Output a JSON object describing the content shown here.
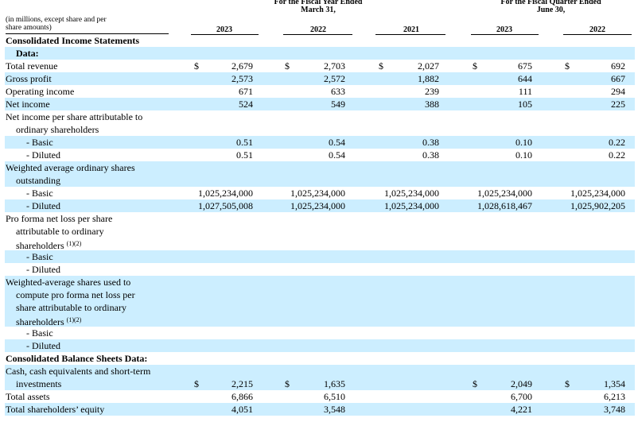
{
  "header": {
    "fiscal_year_title_line1": "For the Fiscal Year Ended",
    "fiscal_year_title_line2": "March 31,",
    "fiscal_quarter_title_line1": "For the Fiscal Quarter Ended",
    "fiscal_quarter_title_line2": "June 30,",
    "unit_note_line1": "(in millions, except share and per",
    "unit_note_line2": "share amounts)",
    "columns": [
      "2023",
      "2022",
      "2021",
      "2023",
      "2022"
    ]
  },
  "rows": [
    {
      "label": "Consolidated Income Statements",
      "bold": true,
      "indent": 0,
      "shade": false,
      "values": [
        "",
        "",
        "",
        "",
        ""
      ],
      "dollars": [
        false,
        false,
        false,
        false,
        false
      ]
    },
    {
      "label": "Data:",
      "bold": true,
      "indent": 1,
      "shade": true,
      "values": [
        "",
        "",
        "",
        "",
        ""
      ],
      "dollars": [
        false,
        false,
        false,
        false,
        false
      ]
    },
    {
      "label": "Total revenue",
      "bold": false,
      "indent": 0,
      "shade": false,
      "values": [
        "2,679",
        "2,703",
        "2,027",
        "675",
        "692"
      ],
      "dollars": [
        true,
        true,
        true,
        true,
        true
      ]
    },
    {
      "label": "Gross profit",
      "bold": false,
      "indent": 0,
      "shade": true,
      "values": [
        "2,573",
        "2,572",
        "1,882",
        "644",
        "667"
      ],
      "dollars": [
        false,
        false,
        false,
        false,
        false
      ]
    },
    {
      "label": "Operating income",
      "bold": false,
      "indent": 0,
      "shade": false,
      "values": [
        "671",
        "633",
        "239",
        "111",
        "294"
      ],
      "dollars": [
        false,
        false,
        false,
        false,
        false
      ]
    },
    {
      "label": "Net income",
      "bold": false,
      "indent": 0,
      "shade": true,
      "values": [
        "524",
        "549",
        "388",
        "105",
        "225"
      ],
      "dollars": [
        false,
        false,
        false,
        false,
        false
      ]
    },
    {
      "label": "Net income per share attributable to",
      "bold": false,
      "indent": 0,
      "shade": false,
      "values": [
        "",
        "",
        "",
        "",
        ""
      ],
      "dollars": [
        false,
        false,
        false,
        false,
        false
      ]
    },
    {
      "label": "ordinary shareholders",
      "bold": false,
      "indent": 1,
      "shade": false,
      "values": [
        "",
        "",
        "",
        "",
        ""
      ],
      "dollars": [
        false,
        false,
        false,
        false,
        false
      ]
    },
    {
      "label": "- Basic",
      "bold": false,
      "indent": 2,
      "shade": true,
      "values": [
        "0.51",
        "0.54",
        "0.38",
        "0.10",
        "0.22"
      ],
      "dollars": [
        false,
        false,
        false,
        false,
        false
      ]
    },
    {
      "label": "- Diluted",
      "bold": false,
      "indent": 2,
      "shade": false,
      "values": [
        "0.51",
        "0.54",
        "0.38",
        "0.10",
        "0.22"
      ],
      "dollars": [
        false,
        false,
        false,
        false,
        false
      ]
    },
    {
      "label": "Weighted average ordinary shares",
      "bold": false,
      "indent": 0,
      "shade": true,
      "values": [
        "",
        "",
        "",
        "",
        ""
      ],
      "dollars": [
        false,
        false,
        false,
        false,
        false
      ]
    },
    {
      "label": "outstanding",
      "bold": false,
      "indent": 1,
      "shade": true,
      "values": [
        "",
        "",
        "",
        "",
        ""
      ],
      "dollars": [
        false,
        false,
        false,
        false,
        false
      ]
    },
    {
      "label": "- Basic",
      "bold": false,
      "indent": 2,
      "shade": false,
      "values": [
        "1,025,234,000",
        "1,025,234,000",
        "1,025,234,000",
        "1,025,234,000",
        "1,025,234,000"
      ],
      "dollars": [
        false,
        false,
        false,
        false,
        false
      ]
    },
    {
      "label": "- Diluted",
      "bold": false,
      "indent": 2,
      "shade": true,
      "values": [
        "1,027,505,008",
        "1,025,234,000",
        "1,025,234,000",
        "1,028,618,467",
        "1,025,902,205"
      ],
      "dollars": [
        false,
        false,
        false,
        false,
        false
      ]
    },
    {
      "label": "Pro forma net loss per share",
      "bold": false,
      "indent": 0,
      "shade": false,
      "values": [
        "",
        "",
        "",
        "",
        ""
      ],
      "dollars": [
        false,
        false,
        false,
        false,
        false
      ]
    },
    {
      "label": "attributable to ordinary",
      "bold": false,
      "indent": 1,
      "shade": false,
      "values": [
        "",
        "",
        "",
        "",
        ""
      ],
      "dollars": [
        false,
        false,
        false,
        false,
        false
      ]
    },
    {
      "label": "shareholders",
      "footnote": "(1)(2)",
      "bold": false,
      "indent": 1,
      "shade": false,
      "values": [
        "",
        "",
        "",
        "",
        ""
      ],
      "dollars": [
        false,
        false,
        false,
        false,
        false
      ]
    },
    {
      "label": "- Basic",
      "bold": false,
      "indent": 2,
      "shade": true,
      "values": [
        "",
        "",
        "",
        "",
        ""
      ],
      "dollars": [
        false,
        false,
        false,
        false,
        false
      ]
    },
    {
      "label": "- Diluted",
      "bold": false,
      "indent": 2,
      "shade": false,
      "values": [
        "",
        "",
        "",
        "",
        ""
      ],
      "dollars": [
        false,
        false,
        false,
        false,
        false
      ]
    },
    {
      "label": "Weighted-average shares used to",
      "bold": false,
      "indent": 0,
      "shade": true,
      "values": [
        "",
        "",
        "",
        "",
        ""
      ],
      "dollars": [
        false,
        false,
        false,
        false,
        false
      ]
    },
    {
      "label": "compute pro forma net loss per",
      "bold": false,
      "indent": 1,
      "shade": true,
      "values": [
        "",
        "",
        "",
        "",
        ""
      ],
      "dollars": [
        false,
        false,
        false,
        false,
        false
      ]
    },
    {
      "label": "share attributable to ordinary",
      "bold": false,
      "indent": 1,
      "shade": true,
      "values": [
        "",
        "",
        "",
        "",
        ""
      ],
      "dollars": [
        false,
        false,
        false,
        false,
        false
      ]
    },
    {
      "label": "shareholders",
      "footnote": "(1)(2)",
      "bold": false,
      "indent": 1,
      "shade": true,
      "values": [
        "",
        "",
        "",
        "",
        ""
      ],
      "dollars": [
        false,
        false,
        false,
        false,
        false
      ]
    },
    {
      "label": "- Basic",
      "bold": false,
      "indent": 2,
      "shade": false,
      "values": [
        "",
        "",
        "",
        "",
        ""
      ],
      "dollars": [
        false,
        false,
        false,
        false,
        false
      ]
    },
    {
      "label": "- Diluted",
      "bold": false,
      "indent": 2,
      "shade": true,
      "values": [
        "",
        "",
        "",
        "",
        ""
      ],
      "dollars": [
        false,
        false,
        false,
        false,
        false
      ]
    },
    {
      "label": "Consolidated Balance Sheets Data:",
      "bold": true,
      "indent": 0,
      "shade": false,
      "values": [
        "",
        "",
        "",
        "",
        ""
      ],
      "dollars": [
        false,
        false,
        false,
        false,
        false
      ]
    },
    {
      "label": "Cash, cash equivalents and short-term",
      "bold": false,
      "indent": 0,
      "shade": true,
      "values": [
        "",
        "",
        "",
        "",
        ""
      ],
      "dollars": [
        false,
        false,
        false,
        false,
        false
      ]
    },
    {
      "label": "investments",
      "bold": false,
      "indent": 1,
      "shade": true,
      "values": [
        "2,215",
        "1,635",
        "",
        "2,049",
        "1,354"
      ],
      "dollars": [
        true,
        true,
        false,
        true,
        true
      ]
    },
    {
      "label": "Total assets",
      "bold": false,
      "indent": 0,
      "shade": false,
      "values": [
        "6,866",
        "6,510",
        "",
        "6,700",
        "6,213"
      ],
      "dollars": [
        false,
        false,
        false,
        false,
        false
      ]
    },
    {
      "label": "Total shareholders’ equity",
      "bold": false,
      "indent": 0,
      "shade": true,
      "values": [
        "4,051",
        "3,548",
        "",
        "4,221",
        "3,748"
      ],
      "dollars": [
        false,
        false,
        false,
        false,
        false
      ]
    }
  ],
  "symbols": {
    "currency": "$"
  }
}
